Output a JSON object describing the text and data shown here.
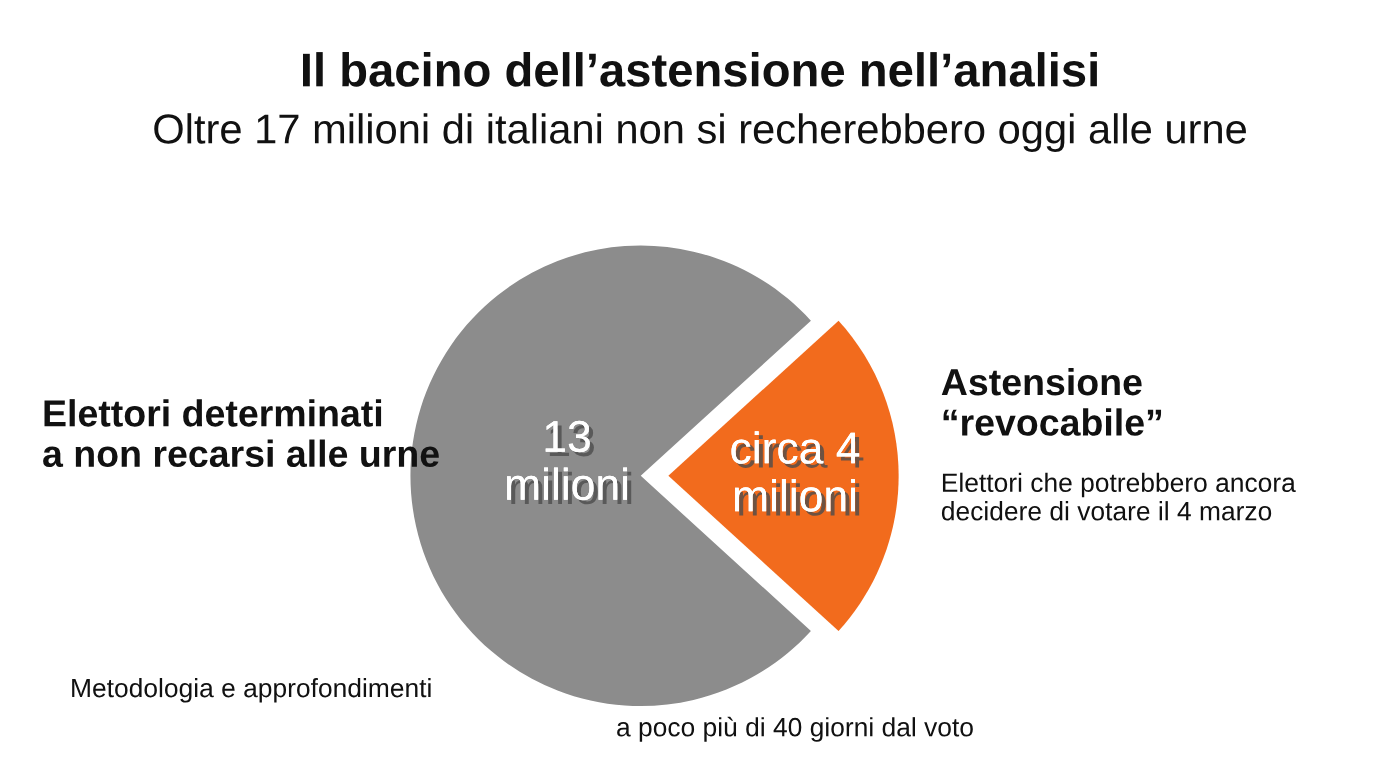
{
  "chart_data": {
    "type": "pie",
    "title": "Il bacino dell’astensione nell’analisi",
    "subtitle": "Oltre 17 milioni di italiani non si recherebbero oggi alle urne",
    "categories": [
      "Elettori determinati\na non recarsi alle urne",
      "Astensione\n“revocabile”"
    ],
    "values": [
      13,
      4
    ],
    "value_labels": [
      "13\nmilioni",
      "circa 4\nmilioni"
    ],
    "colors": [
      "#8c8c8c",
      "#f26b1d"
    ],
    "annotations": [
      "Elettori che potrebbero ancora\ndecidere di votare il 4 marzo",
      "a poco più di 40 giorni dal voto",
      "Metodologia e approfondimenti"
    ],
    "legend": false
  }
}
